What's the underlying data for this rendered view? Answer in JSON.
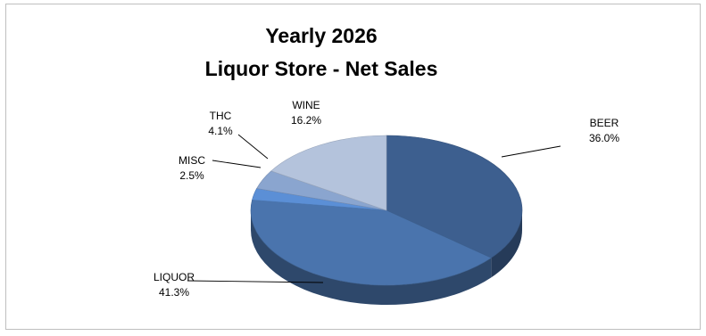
{
  "chart_data": {
    "type": "pie",
    "title_lines": [
      "Yearly 2026",
      "Liquor Store - Net Sales"
    ],
    "slices": [
      {
        "label": "BEER",
        "percent_label": "36.0%",
        "value": 36.0,
        "color": "#3d5f8f"
      },
      {
        "label": "LIQUOR",
        "percent_label": "41.3%",
        "value": 41.3,
        "color": "#4a74ad"
      },
      {
        "label": "MISC",
        "percent_label": "2.5%",
        "value": 2.5,
        "color": "#5b8fd6"
      },
      {
        "label": "THC",
        "percent_label": "4.1%",
        "value": 4.1,
        "color": "#8aa5cf"
      },
      {
        "label": "WINE",
        "percent_label": "16.2%",
        "value": 16.2,
        "color": "#b4c3dc"
      }
    ],
    "style": "3d",
    "legend": "none",
    "data_labels": "outside with leader lines"
  }
}
